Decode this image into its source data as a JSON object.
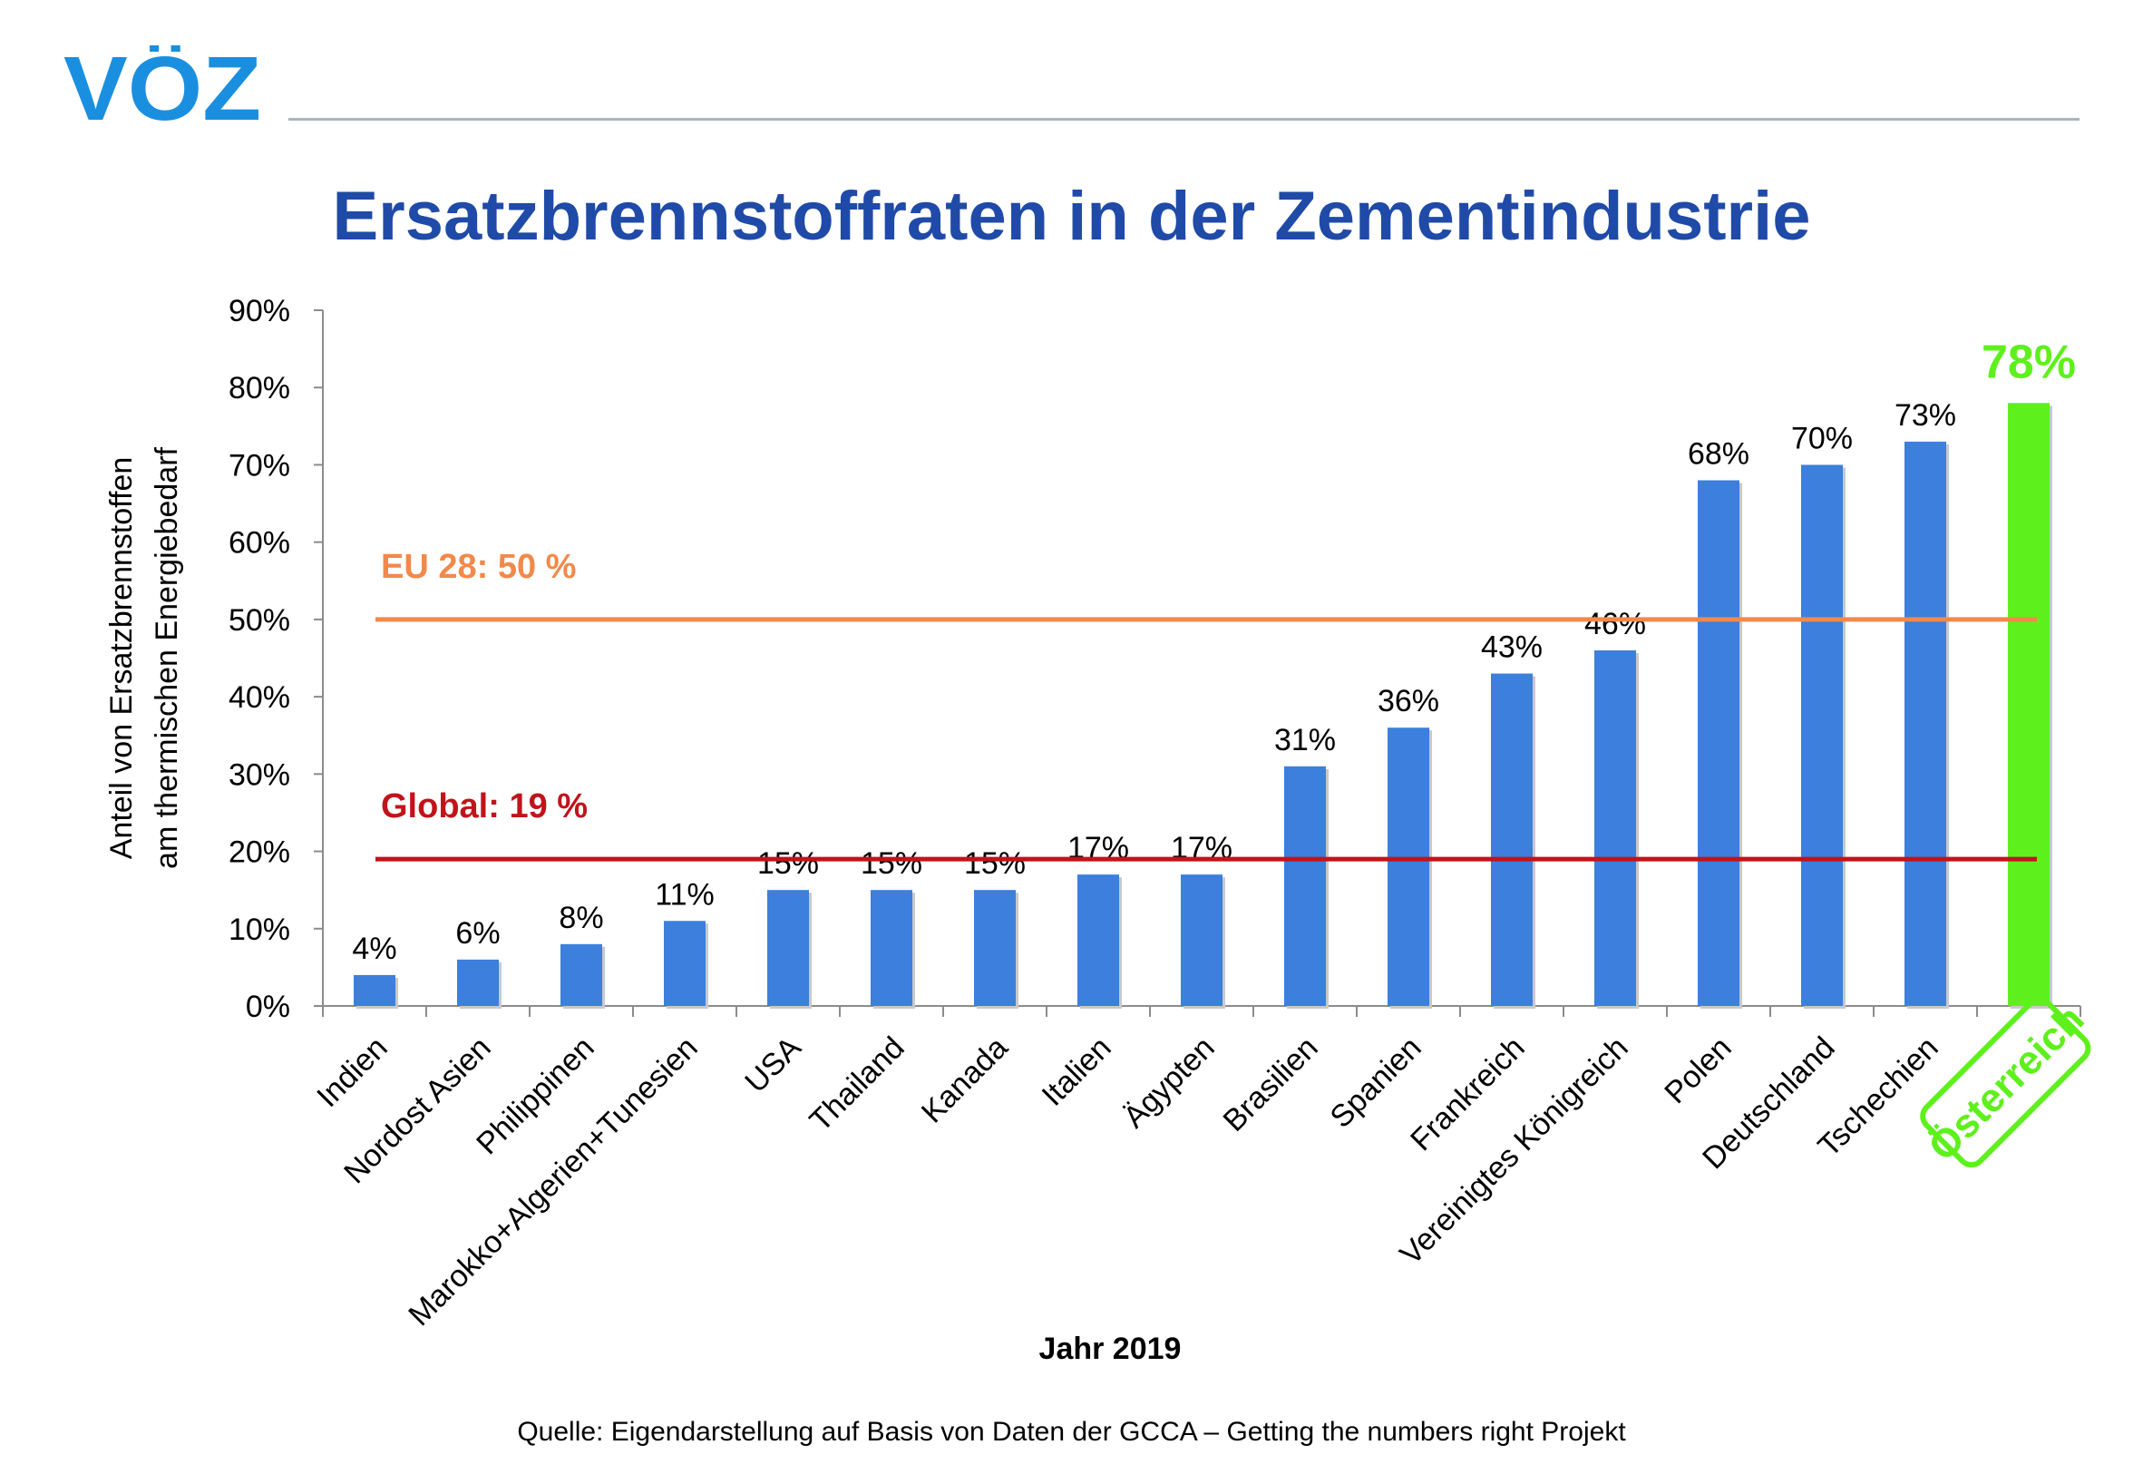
{
  "logo": {
    "text": "VÖZ",
    "color": "#1a8fe0"
  },
  "title": "Ersatzbrennstoffraten in der Zementindustrie",
  "source": "Quelle: Eigendarstellung auf Basis von Daten der GCCA – Getting the numbers right Projekt",
  "chart_data": {
    "type": "bar",
    "title": "Ersatzbrennstoffraten in der Zementindustrie",
    "xlabel": "Jahr 2019",
    "ylabel_lines": [
      "Anteil von Ersatzbrennstoffen",
      "am thermischen Energiebedarf"
    ],
    "ylim": [
      0,
      90
    ],
    "yticks": [
      "0%",
      "10%",
      "20%",
      "30%",
      "40%",
      "50%",
      "60%",
      "70%",
      "80%",
      "90%"
    ],
    "categories": [
      "Indien",
      "Nordost Asien",
      "Philippinen",
      "Marokko+Algerien+Tunesien",
      "USA",
      "Thailand",
      "Kanada",
      "Italien",
      "Ägypten",
      "Brasilien",
      "Spanien",
      "Frankreich",
      "Vereinigtes Königreich",
      "Polen",
      "Deutschland",
      "Tschechien",
      "Österreich"
    ],
    "values": [
      4,
      6,
      8,
      11,
      15,
      15,
      15,
      17,
      17,
      31,
      36,
      43,
      46,
      68,
      70,
      73,
      78
    ],
    "value_labels": [
      "4%",
      "6%",
      "8%",
      "11%",
      "15%",
      "15%",
      "15%",
      "17%",
      "17%",
      "31%",
      "36%",
      "43%",
      "46%",
      "68%",
      "70%",
      "73%",
      "78%"
    ],
    "bar_color": "#3d7fdc",
    "highlight_index": 16,
    "highlight_color": "#5ef01c",
    "grid": false,
    "reference_lines": [
      {
        "label": "EU 28: 50 %",
        "value": 50,
        "color": "#f2894a"
      },
      {
        "label": "Global: 19 %",
        "value": 19,
        "color": "#c0141b"
      }
    ]
  }
}
